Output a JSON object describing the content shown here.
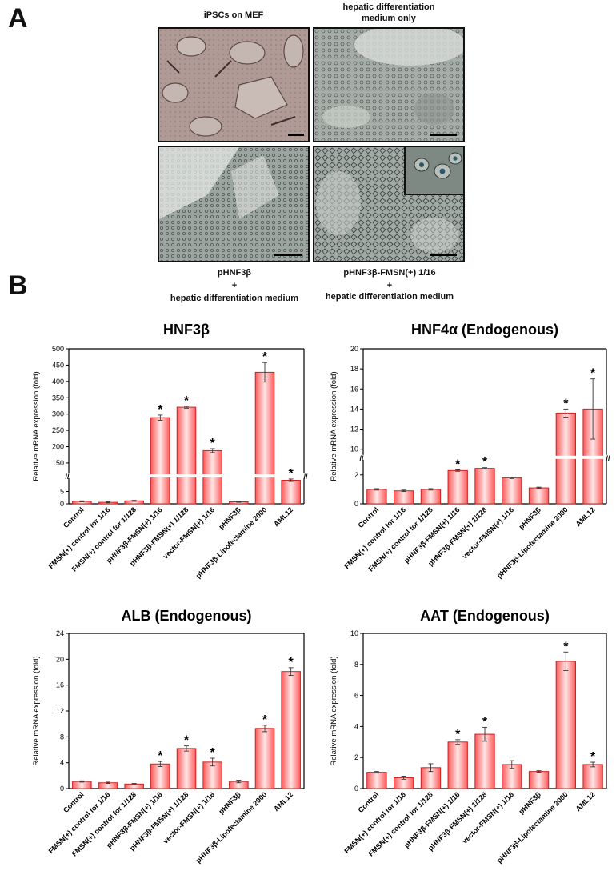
{
  "panel_a": {
    "letter": "A",
    "titles": [
      "iPSCs on MEF",
      "hepatic differentiation",
      "medium only"
    ],
    "captions": [
      "pHNF3β",
      "+",
      "hepatic differentiation medium",
      "pHNF3β-FMSN(+) 1/16",
      "+",
      "hepatic differentiation medium"
    ]
  },
  "panel_b": {
    "letter": "B"
  },
  "colors": {
    "bar_edge": "#cc2222",
    "bar_fill": "#ffe6e6",
    "bar_core": "#ff5a5a",
    "axis": "#000000"
  },
  "chart_data": [
    {
      "type": "bar",
      "title": "HNF3β",
      "ylabel": "Relative mRNA expression (fold)",
      "categories": [
        "Control",
        "FMSN(+) control for 1/16",
        "FMSN(+) control for 1/128",
        "pHNF3β-FMSN(+) 1/16",
        "pHNF3β-FMSN(+) 1/128",
        "vector-FMSN(+) 1/16",
        "pHNF3β",
        "pHNF3β-Lipofectamine 2000",
        "AML12"
      ],
      "values": [
        1.0,
        0.6,
        1.2,
        289,
        321,
        188,
        0.8,
        428,
        9.5
      ],
      "errors": [
        0.2,
        0.2,
        0.2,
        8,
        3,
        6,
        0.2,
        30,
        0.5
      ],
      "significant": [
        false,
        false,
        false,
        true,
        true,
        true,
        false,
        true,
        true
      ],
      "axis_break": [
        10,
        120
      ],
      "yticks_low": [
        "0",
        "5"
      ],
      "yticks_high": [
        "150",
        "200",
        "250",
        "300",
        "350",
        "400",
        "450",
        "500"
      ],
      "ylim": [
        0,
        500
      ]
    },
    {
      "type": "bar",
      "title": "HNF4α (Endogenous)",
      "ylabel": "Relative mRNA expression (fold)",
      "categories": [
        "Control",
        "FMSN(+) control for 1/16",
        "FMSN(+) control for 1/128",
        "pHNF3β-FMSN(+) 1/16",
        "pHNF3β-FMSN(+) 1/128",
        "vector-FMSN(+) 1/16",
        "pHNF3β",
        "pHNF3β-Lipofectamine 2000",
        "AML12"
      ],
      "values": [
        1.0,
        0.9,
        1.0,
        2.3,
        2.45,
        1.8,
        1.1,
        13.6,
        14.0
      ],
      "errors": [
        0.05,
        0.05,
        0.05,
        0.05,
        0.05,
        0.05,
        0.05,
        0.4,
        3.0
      ],
      "significant": [
        false,
        false,
        false,
        true,
        true,
        false,
        false,
        true,
        true
      ],
      "axis_break": [
        3,
        9.5
      ],
      "yticks_low": [
        "0",
        "2"
      ],
      "yticks_high": [
        "10",
        "12",
        "14",
        "16",
        "18",
        "20"
      ],
      "ylim": [
        0,
        20
      ]
    },
    {
      "type": "bar",
      "title": "ALB (Endogenous)",
      "ylabel": "Relative mRNA expression (fold)",
      "categories": [
        "Control",
        "FMSN(+) control for 1/16",
        "FMSN(+) control for 1/128",
        "pHNF3β-FMSN(+) 1/16",
        "pHNF3β-FMSN(+) 1/128",
        "vector-FMSN(+) 1/16",
        "pHNF3β",
        "pHNF3β-Lipofectamine 2000",
        "AML12"
      ],
      "values": [
        1.1,
        0.9,
        0.7,
        3.8,
        6.2,
        4.1,
        1.1,
        9.3,
        18.1
      ],
      "errors": [
        0.1,
        0.1,
        0.1,
        0.4,
        0.4,
        0.6,
        0.2,
        0.5,
        0.6
      ],
      "significant": [
        false,
        false,
        false,
        true,
        true,
        true,
        false,
        true,
        true
      ],
      "yticks": [
        "0",
        "4",
        "8",
        "12",
        "16",
        "20",
        "24"
      ],
      "ylim": [
        0,
        24
      ]
    },
    {
      "type": "bar",
      "title": "AAT (Endogenous)",
      "ylabel": "Relative mRNA expression (fold)",
      "categories": [
        "Control",
        "FMSN(+) control for 1/16",
        "FMSN(+) control for 1/128",
        "pHNF3β-FMSN(+) 1/16",
        "pHNF3β-FMSN(+) 1/128",
        "vector-FMSN(+) 1/16",
        "pHNF3β",
        "pHNF3β-Lipofectamine 2000",
        "AML12"
      ],
      "values": [
        1.05,
        0.7,
        1.35,
        3.0,
        3.5,
        1.55,
        1.1,
        8.2,
        1.55
      ],
      "errors": [
        0.05,
        0.1,
        0.25,
        0.15,
        0.45,
        0.25,
        0.05,
        0.6,
        0.15
      ],
      "significant": [
        false,
        false,
        false,
        true,
        true,
        false,
        false,
        true,
        true
      ],
      "yticks": [
        "0",
        "2",
        "4",
        "6",
        "8",
        "10"
      ],
      "ylim": [
        0,
        10
      ]
    }
  ],
  "star_label": "*",
  "break_mark": "//"
}
